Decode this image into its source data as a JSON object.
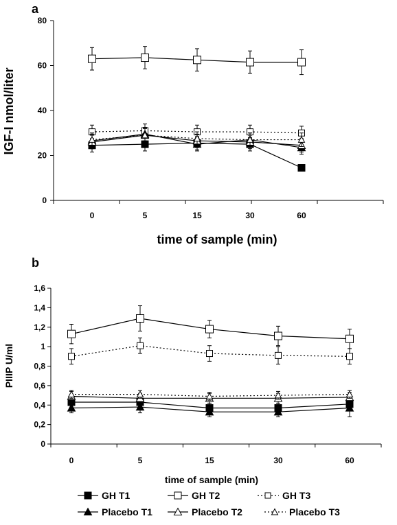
{
  "figure": {
    "legend": [
      {
        "label": "GH T1",
        "marker": "filled-square",
        "line": "solid"
      },
      {
        "label": "GH T2",
        "marker": "open-square",
        "line": "solid"
      },
      {
        "label": "GH T3",
        "marker": "open-square-small",
        "line": "dotted"
      },
      {
        "label": "Placebo T1",
        "marker": "filled-triangle",
        "line": "solid"
      },
      {
        "label": "Placebo T2",
        "marker": "open-triangle",
        "line": "solid"
      },
      {
        "label": "Placebo T3",
        "marker": "open-triangle-small",
        "line": "dotted"
      }
    ]
  },
  "chart_data": [
    {
      "panel_label": "a",
      "type": "line",
      "xlabel": "time of sample (min)",
      "ylabel": "IGF-I nmol/liter",
      "categories": [
        "0",
        "5",
        "15",
        "30",
        "60"
      ],
      "ylim": [
        0,
        80
      ],
      "yticks": [
        "0",
        "20",
        "40",
        "60",
        "80"
      ],
      "grid": false,
      "error_bars": true,
      "series": [
        {
          "name": "GH T1",
          "values": [
            24.5,
            25,
            25.5,
            25,
            14.5
          ],
          "errors": [
            3,
            3,
            3,
            3,
            1
          ]
        },
        {
          "name": "GH T2",
          "values": [
            63,
            63.5,
            62.5,
            61.5,
            61.5
          ],
          "errors": [
            5,
            5,
            5,
            5,
            5.5
          ]
        },
        {
          "name": "GH T3",
          "values": [
            30.5,
            31,
            30.5,
            30.5,
            30
          ],
          "errors": [
            3,
            3,
            3,
            3,
            3
          ]
        },
        {
          "name": "Placebo T1",
          "values": [
            26.5,
            29.5,
            25,
            27,
            23.5
          ],
          "errors": [
            3,
            3,
            3,
            3,
            3
          ]
        },
        {
          "name": "Placebo T2",
          "values": [
            26,
            29,
            26.5,
            26,
            24.5
          ],
          "errors": [
            3,
            3,
            3,
            3,
            3
          ]
        },
        {
          "name": "Placebo T3",
          "values": [
            27,
            29,
            27.5,
            27,
            27
          ],
          "errors": [
            3,
            3,
            3,
            3,
            3
          ]
        }
      ]
    },
    {
      "panel_label": "b",
      "type": "line",
      "xlabel": "time of sample (min)",
      "ylabel": "PIIIP U/ml",
      "categories": [
        "0",
        "5",
        "15",
        "30",
        "60"
      ],
      "ylim": [
        0,
        1.6
      ],
      "yticks": [
        "0",
        "0,2",
        "0,4",
        "0,6",
        "0,8",
        "1",
        "1,2",
        "1,4",
        "1,6"
      ],
      "grid": false,
      "error_bars": true,
      "series": [
        {
          "name": "GH T1",
          "values": [
            0.43,
            0.43,
            0.37,
            0.37,
            0.41
          ],
          "errors": [
            0.05,
            0.05,
            0.05,
            0.05,
            0.05
          ]
        },
        {
          "name": "GH T2",
          "values": [
            1.13,
            1.29,
            1.18,
            1.11,
            1.08
          ],
          "errors": [
            0.1,
            0.13,
            0.09,
            0.1,
            0.1
          ]
        },
        {
          "name": "GH T3",
          "values": [
            0.9,
            1.01,
            0.93,
            0.91,
            0.9
          ],
          "errors": [
            0.08,
            0.08,
            0.08,
            0.09,
            0.08
          ]
        },
        {
          "name": "Placebo T1",
          "values": [
            0.37,
            0.38,
            0.33,
            0.33,
            0.37
          ],
          "errors": [
            0.05,
            0.06,
            0.05,
            0.05,
            0.09
          ]
        },
        {
          "name": "Placebo T2",
          "values": [
            0.49,
            0.47,
            0.47,
            0.47,
            0.48
          ],
          "errors": [
            0.05,
            0.05,
            0.05,
            0.05,
            0.05
          ]
        },
        {
          "name": "Placebo T3",
          "values": [
            0.51,
            0.51,
            0.49,
            0.5,
            0.51
          ],
          "errors": [
            0.04,
            0.04,
            0.04,
            0.04,
            0.04
          ]
        }
      ]
    }
  ]
}
